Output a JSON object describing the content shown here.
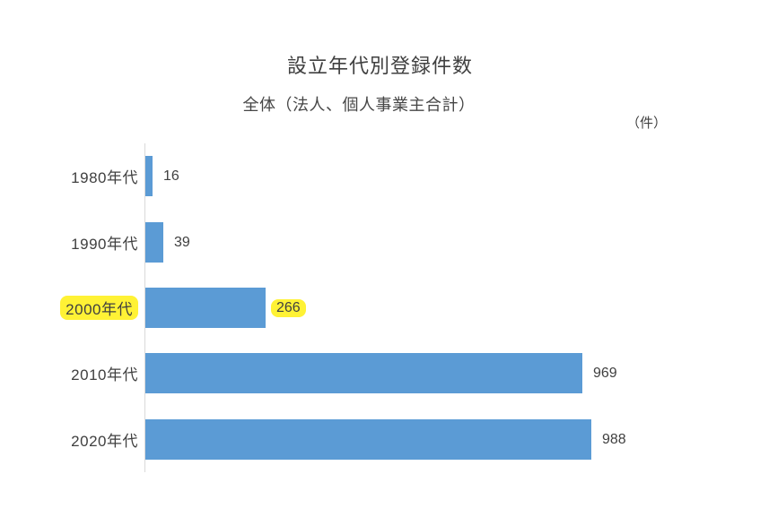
{
  "title": "設立年代別登録件数",
  "subtitle": "全体（法人、個人事業主合計）",
  "unit_label": "（件）",
  "colors": {
    "bar": "#5B9BD5",
    "axis_line": "#D9D9D9",
    "text": "#404040",
    "highlight": "#FFF235",
    "background": "#FFFFFF"
  },
  "chart_data": {
    "type": "bar",
    "orientation": "horizontal",
    "title": "設立年代別登録件数",
    "subtitle": "全体（法人、個人事業主合計）",
    "value_unit": "件",
    "categories": [
      "1980年代",
      "1990年代",
      "2000年代",
      "2010年代",
      "2020年代"
    ],
    "values": [
      16,
      39,
      266,
      969,
      988
    ],
    "data_labels_shown": true,
    "highlighted_category": "2000年代",
    "highlighted_value": 266,
    "xlim": [
      0,
      1000
    ],
    "grid": false,
    "legend": false
  }
}
